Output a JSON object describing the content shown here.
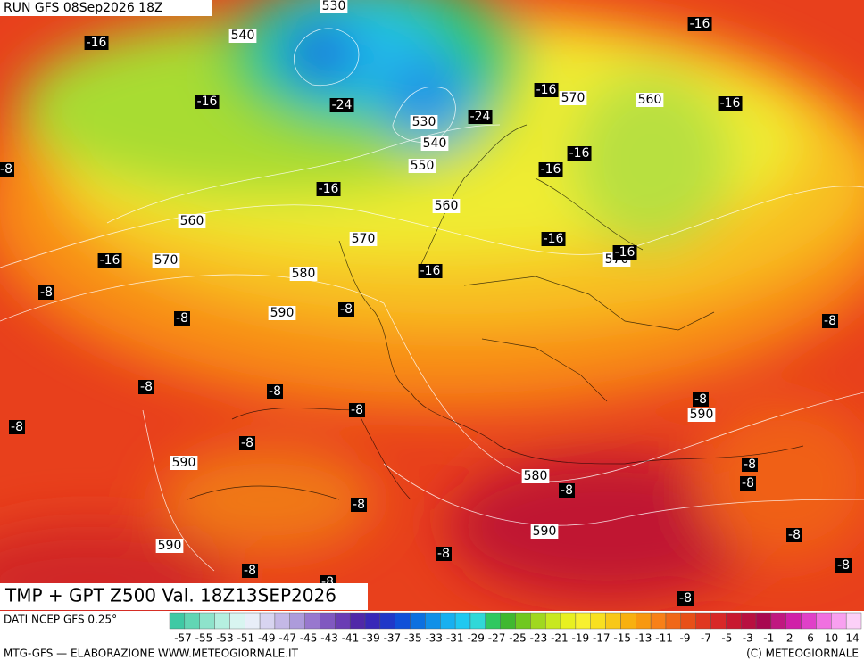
{
  "header": {
    "run": "RUN GFS 08Sep2026 18Z",
    "title": "TMP + GPT Z500 Val. 18Z13SEP2026",
    "source": "DATI NCEP GFS 0.25°",
    "credit_left": "MTG-GFS — ELABORAZIONE WWW.METEOGIORNALE.IT",
    "credit_right": "(C) METEOGIORNALE"
  },
  "geopotential_labels": [
    530,
    540,
    570,
    560,
    530,
    540,
    550,
    560,
    560,
    570,
    570,
    570,
    580,
    590,
    590,
    590,
    580,
    590,
    590
  ],
  "temperature_labels": [
    -16,
    -16,
    -16,
    -24,
    -16,
    -24,
    -16,
    -16,
    -16,
    -8,
    -16,
    -16,
    -16,
    -16,
    -16,
    -8,
    -8,
    -8,
    -8,
    -8,
    -8,
    -8,
    -8,
    -8,
    -8,
    -8,
    -8,
    -8,
    -8,
    -8,
    -8,
    -8,
    -8,
    -8,
    -8
  ],
  "legend": {
    "ticks": [
      -57,
      -55,
      -53,
      -51,
      -49,
      -47,
      -45,
      -43,
      -41,
      -39,
      -37,
      -35,
      -33,
      -31,
      -29,
      -27,
      -25,
      -23,
      -21,
      -19,
      -17,
      -15,
      -13,
      -11,
      -9,
      -7,
      -5,
      -3,
      -1,
      2,
      6,
      10,
      14
    ],
    "colors": [
      "#3fc9a4",
      "#62d6b4",
      "#8ee3cb",
      "#b5efe0",
      "#d8f5f0",
      "#e8eef8",
      "#d8d4f0",
      "#c4b8e6",
      "#ad9bdb",
      "#9878ce",
      "#8058c0",
      "#6a3db4",
      "#5028a8",
      "#3828b8",
      "#2038c8",
      "#1050d8",
      "#0c70e0",
      "#1090e8",
      "#18b0f0",
      "#20c8f0",
      "#30d8d8",
      "#30c860",
      "#40b830",
      "#70c820",
      "#a0d820",
      "#c8e820",
      "#e8f020",
      "#f8f030",
      "#f8e020",
      "#f8c818",
      "#f8b010",
      "#f89810",
      "#f88018",
      "#f06818",
      "#e85018",
      "#e03820",
      "#d82828",
      "#c81830",
      "#b81040",
      "#a80850",
      "#c01880",
      "#d020a8",
      "#e040c8",
      "#f070e0",
      "#f8a0f0",
      "#fcd0f8"
    ]
  }
}
